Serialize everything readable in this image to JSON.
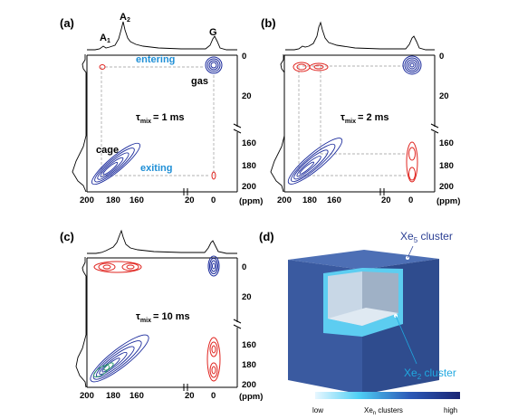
{
  "panels": [
    {
      "id": "a",
      "label": "(a)",
      "tmix_value": "= 1 ms",
      "annotations": {
        "entering": "entering",
        "exiting": "exiting",
        "gas": "gas",
        "cage": "cage",
        "peak_a1": "A",
        "peak_a1_sub": "1",
        "peak_a2": "A",
        "peak_a2_sub": "2",
        "peak_g": "G"
      }
    },
    {
      "id": "b",
      "label": "(b)",
      "tmix_value": "= 2 ms"
    },
    {
      "id": "c",
      "label": "(c)",
      "tmix_value": "= 10 ms"
    },
    {
      "id": "d",
      "label": "(d)"
    }
  ],
  "tmix_symbol": "τ",
  "tmix_sub": "mix",
  "axes": {
    "x_ticks": [
      "200",
      "180",
      "160",
      "20",
      "0"
    ],
    "x_unit": "(ppm)",
    "y_top_ticks": [
      "0",
      "20"
    ],
    "y_bottom_ticks": [
      "160",
      "180",
      "200"
    ]
  },
  "cube": {
    "xe5_prefix": "Xe",
    "xe5_sub": "5",
    "xe5_suffix": " cluster",
    "xe2_prefix": "Xe",
    "xe2_sub": "2",
    "xe2_suffix": " cluster",
    "colorbar_low": "low",
    "colorbar_mid_prefix": "Xe",
    "colorbar_mid_sub": "n",
    "colorbar_mid_suffix": " clusters",
    "colorbar_high": "high"
  },
  "colors": {
    "blue_contour": "#1a2a9c",
    "red_contour": "#e0241f",
    "accent_text": "#1f8fd6",
    "cube_outer": "#3a5aa0"
  }
}
